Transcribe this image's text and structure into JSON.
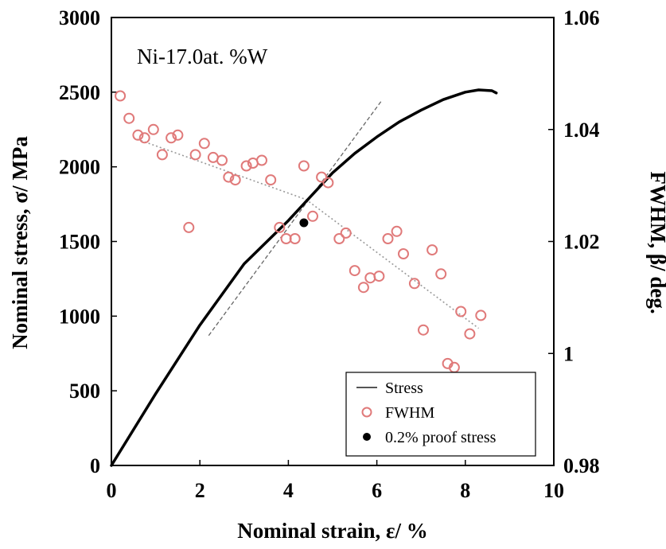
{
  "chart_data": {
    "type": "scatter",
    "annotation": "Ni-17.0at. %W",
    "xlabel": "Nominal strain, ε/ %",
    "ylabel_left": "Nominal stress, σ/ MPa",
    "ylabel_right": "FWHM, β/ deg.",
    "xlim": [
      0,
      10
    ],
    "ylim_left": [
      0,
      3000
    ],
    "ylim_right": [
      0.98,
      1.06
    ],
    "x_ticks": [
      "0",
      "2",
      "4",
      "6",
      "8",
      "10"
    ],
    "y_left_ticks": [
      "0",
      "500",
      "1000",
      "1500",
      "2000",
      "2500",
      "3000"
    ],
    "y_right_ticks": [
      "0.98",
      "1",
      "1.02",
      "1.04",
      "1.06"
    ],
    "grid": false,
    "legend_position": "bottom-right",
    "legend": {
      "stress": "Stress",
      "fwhm": "FWHM",
      "proof": "0.2% proof stress"
    },
    "series": [
      {
        "name": "Stress",
        "kind": "line",
        "axis": "left",
        "color": "#000000",
        "points": [
          [
            0,
            0
          ],
          [
            1,
            480
          ],
          [
            2,
            940
          ],
          [
            3,
            1350
          ],
          [
            4,
            1640
          ],
          [
            4.5,
            1800
          ],
          [
            5,
            1960
          ],
          [
            5.5,
            2090
          ],
          [
            6,
            2200
          ],
          [
            6.5,
            2300
          ],
          [
            7,
            2380
          ],
          [
            7.5,
            2450
          ],
          [
            8,
            2500
          ],
          [
            8.3,
            2515
          ],
          [
            8.6,
            2510
          ],
          [
            8.7,
            2495
          ]
        ]
      },
      {
        "name": "FWHM",
        "kind": "scatter",
        "axis": "right",
        "color": "#e07a7a",
        "points": [
          [
            0.2,
            1.046
          ],
          [
            0.4,
            1.042
          ],
          [
            0.6,
            1.039
          ],
          [
            0.75,
            1.0385
          ],
          [
            0.95,
            1.04
          ],
          [
            1.15,
            1.0355
          ],
          [
            1.35,
            1.0385
          ],
          [
            1.5,
            1.039
          ],
          [
            1.75,
            1.0225
          ],
          [
            1.9,
            1.0355
          ],
          [
            2.1,
            1.0375
          ],
          [
            2.3,
            1.035
          ],
          [
            2.5,
            1.0345
          ],
          [
            2.65,
            1.0315
          ],
          [
            2.8,
            1.031
          ],
          [
            3.05,
            1.0335
          ],
          [
            3.2,
            1.034
          ],
          [
            3.4,
            1.0345
          ],
          [
            3.6,
            1.031
          ],
          [
            3.8,
            1.0225
          ],
          [
            3.95,
            1.0205
          ],
          [
            4.15,
            1.0205
          ],
          [
            4.35,
            1.0335
          ],
          [
            4.55,
            1.0245
          ],
          [
            4.75,
            1.0315
          ],
          [
            4.9,
            1.0305
          ],
          [
            5.15,
            1.0205
          ],
          [
            5.3,
            1.0215
          ],
          [
            5.5,
            1.0148
          ],
          [
            5.7,
            1.0118
          ],
          [
            5.85,
            1.0135
          ],
          [
            6.05,
            1.0138
          ],
          [
            6.25,
            1.0205
          ],
          [
            6.45,
            1.0218
          ],
          [
            6.6,
            1.0178
          ],
          [
            6.85,
            1.0125
          ],
          [
            7.05,
            1.0042
          ],
          [
            7.25,
            1.0185
          ],
          [
            7.45,
            1.0142
          ],
          [
            7.6,
            0.9982
          ],
          [
            7.75,
            0.9975
          ],
          [
            7.9,
            1.0075
          ],
          [
            8.1,
            1.0035
          ],
          [
            8.35,
            1.0068
          ]
        ]
      },
      {
        "name": "0.2% proof stress",
        "kind": "point",
        "axis": "left",
        "color": "#000000",
        "points": [
          [
            4.35,
            1625
          ]
        ]
      },
      {
        "name": "FWHM trend",
        "kind": "dotted-line",
        "axis": "right",
        "color": "#999999",
        "points": [
          [
            0.5,
            1.0385
          ],
          [
            4.4,
            1.0275
          ],
          [
            8.3,
            1.0045
          ]
        ]
      },
      {
        "name": "Elastic offset",
        "kind": "dashed-line",
        "axis": "left",
        "color": "#666666",
        "points": [
          [
            2.2,
            870
          ],
          [
            6.1,
            2440
          ]
        ]
      }
    ]
  }
}
